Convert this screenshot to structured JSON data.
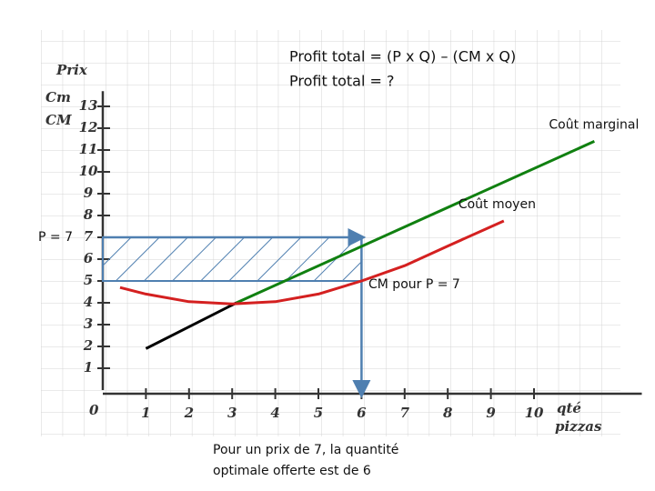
{
  "chart_data": {
    "type": "line",
    "title": [
      "Profit total = (P x Q) – (CM x Q)",
      "Profit total = ?"
    ],
    "y_label": [
      "Prix",
      "Cm",
      "CM"
    ],
    "x_label": [
      "qté",
      "pizzas"
    ],
    "origin_label": "0",
    "xlim": [
      0,
      12.5
    ],
    "ylim": [
      0,
      13.2
    ],
    "xticks": [
      1,
      2,
      3,
      4,
      5,
      6,
      7,
      8,
      9,
      10
    ],
    "yticks": [
      1,
      2,
      3,
      4,
      5,
      6,
      7,
      8,
      9,
      10,
      11,
      12,
      13
    ],
    "grid": true,
    "series": [
      {
        "color": "#000000",
        "x": [
          1,
          3.1
        ],
        "values": [
          1.9,
          4
        ]
      },
      {
        "name": "Coût marginal",
        "color": "#108010",
        "x": [
          3.1,
          11.4
        ],
        "values": [
          4,
          11.4
        ]
      },
      {
        "name": "Coût moyen",
        "color": "#d42020",
        "x": [
          0.4,
          1,
          2,
          3,
          4,
          5,
          6,
          7,
          8,
          9.3
        ],
        "values": [
          4.7,
          4.4,
          4.05,
          3.95,
          4.05,
          4.4,
          5,
          5.7,
          6.6,
          7.75
        ]
      }
    ],
    "profit_area": {
      "x": [
        0,
        6
      ],
      "y": [
        5,
        7
      ],
      "color": "#4f7fb0"
    },
    "annotations": {
      "price": "P = 7",
      "average_cost": "CM pour P = 7",
      "conclusion": [
        "Pour un prix de 7, la quantité",
        "optimale offerte est de 6"
      ]
    }
  }
}
